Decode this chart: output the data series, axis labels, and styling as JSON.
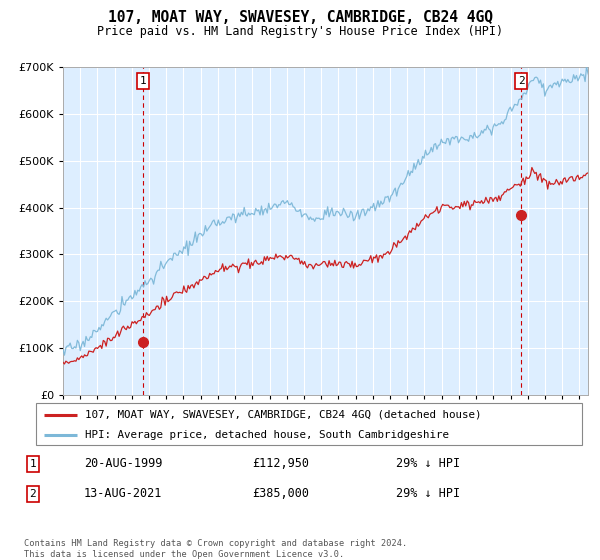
{
  "title": "107, MOAT WAY, SWAVESEY, CAMBRIDGE, CB24 4GQ",
  "subtitle": "Price paid vs. HM Land Registry's House Price Index (HPI)",
  "hpi_color": "#7db8d8",
  "price_color": "#cc2222",
  "background_color": "#ddeeff",
  "plot_bg_color": "#ddeeff",
  "grid_color": "#ffffff",
  "legend_label_price": "107, MOAT WAY, SWAVESEY, CAMBRIDGE, CB24 4GQ (detached house)",
  "legend_label_hpi": "HPI: Average price, detached house, South Cambridgeshire",
  "transaction1_date": "20-AUG-1999",
  "transaction1_price": "£112,950",
  "transaction1_hpi": "29% ↓ HPI",
  "transaction2_date": "13-AUG-2021",
  "transaction2_price": "£385,000",
  "transaction2_hpi": "29% ↓ HPI",
  "footer": "Contains HM Land Registry data © Crown copyright and database right 2024.\nThis data is licensed under the Open Government Licence v3.0.",
  "ylim": [
    0,
    700000
  ],
  "yticks": [
    0,
    100000,
    200000,
    300000,
    400000,
    500000,
    600000,
    700000
  ],
  "xlim_start": 1995.3,
  "xlim_end": 2025.5,
  "xticks": [
    1995,
    1996,
    1997,
    1998,
    1999,
    2000,
    2001,
    2002,
    2003,
    2004,
    2005,
    2006,
    2007,
    2008,
    2009,
    2010,
    2011,
    2012,
    2013,
    2014,
    2015,
    2016,
    2017,
    2018,
    2019,
    2020,
    2021,
    2022,
    2023,
    2024,
    2025
  ],
  "vline1_x": 1999.64,
  "vline2_x": 2021.62,
  "marker1_x": 1999.64,
  "marker1_y": 112950,
  "marker2_x": 2021.62,
  "marker2_y": 385000
}
